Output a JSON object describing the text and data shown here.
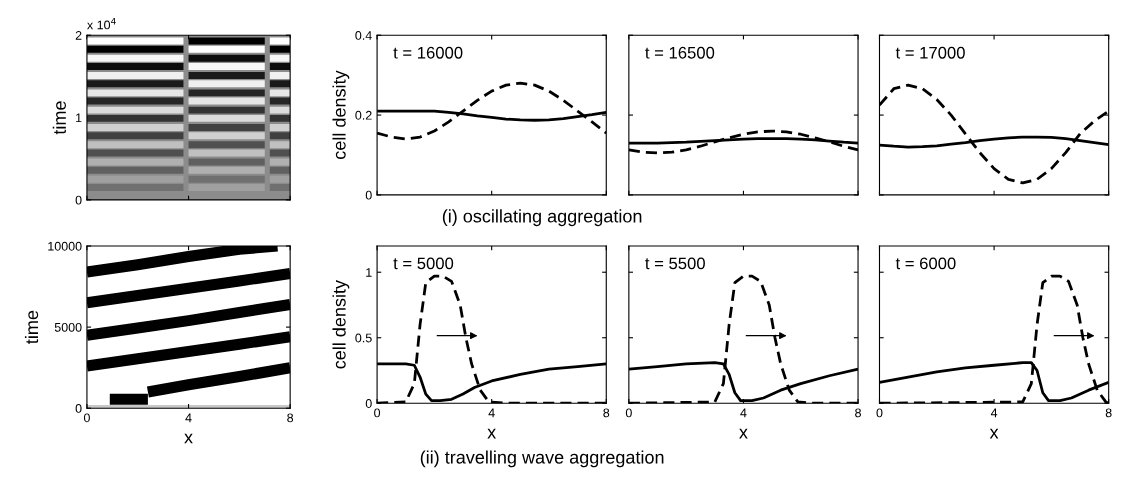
{
  "chart_data": [
    {
      "type": "line",
      "ylabel": "time",
      "annotations": [
        "x 10$^{4}$"
      ],
      "xlim": [
        0,
        8
      ],
      "ylim": [
        0,
        2
      ],
      "xticks": [
        {
          "value": 0,
          "label": null
        },
        {
          "value": 4,
          "label": null
        },
        {
          "value": 8,
          "label": null
        }
      ],
      "yticks": [
        0,
        1,
        2
      ],
      "tick_labels": "y",
      "bands": [
        {
          "axis": "y",
          "from": 0,
          "to": 2,
          "color": "#8c8c8c"
        }
      ],
      "series": [
        {
          "color": "#707070",
          "x": [
            0,
            3.8,
            5.5,
            7.2,
            8
          ],
          "values": [
            0.15,
            0.15,
            null,
            0.15,
            0.15
          ]
        },
        {
          "color": "#a0a0a0",
          "x": [
            4,
            7
          ],
          "values": [
            0.15,
            0.15
          ]
        },
        {
          "color": "#606060",
          "x": [
            0,
            3.8,
            5.5,
            7.2,
            8
          ],
          "values": [
            0.36,
            0.36,
            null,
            0.36,
            0.36
          ]
        },
        {
          "color": "#b0b0b0",
          "x": [
            4,
            7
          ],
          "values": [
            0.36,
            0.36
          ]
        },
        {
          "color": "#505050",
          "x": [
            0,
            3.8,
            5.5,
            7.2,
            8
          ],
          "values": [
            0.57,
            0.57,
            null,
            0.57,
            0.57
          ]
        },
        {
          "color": "#c0c0c0",
          "x": [
            4,
            7
          ],
          "values": [
            0.57,
            0.57
          ]
        },
        {
          "color": "#404040",
          "x": [
            0,
            3.8,
            5.5,
            7.2,
            8
          ],
          "values": [
            0.78,
            0.78,
            null,
            0.78,
            0.78
          ]
        },
        {
          "color": "#d0d0d0",
          "x": [
            4,
            7
          ],
          "values": [
            0.78,
            0.78
          ]
        },
        {
          "color": "#333333",
          "x": [
            0,
            3.8,
            5.5,
            7.2,
            8
          ],
          "values": [
            0.99,
            0.99,
            null,
            0.99,
            0.99
          ]
        },
        {
          "color": "#dcdcdc",
          "x": [
            4,
            7
          ],
          "values": [
            0.99,
            0.99
          ]
        },
        {
          "color": "#262626",
          "x": [
            0,
            3.8,
            5.5,
            7.2,
            8
          ],
          "values": [
            1.2,
            1.2,
            null,
            1.2,
            1.2
          ]
        },
        {
          "color": "#e6e6e6",
          "x": [
            4,
            7
          ],
          "values": [
            1.2,
            1.2
          ]
        },
        {
          "color": "#1a1a1a",
          "x": [
            0,
            3.8,
            5.5,
            7.2,
            8
          ],
          "values": [
            1.41,
            1.41,
            null,
            1.41,
            1.41
          ]
        },
        {
          "color": "#f0f0f0",
          "x": [
            4,
            7
          ],
          "values": [
            1.41,
            1.41
          ]
        },
        {
          "color": "#0d0d0d",
          "x": [
            0,
            3.8,
            5.5,
            7.2,
            8
          ],
          "values": [
            1.62,
            1.62,
            null,
            1.62,
            1.62
          ]
        },
        {
          "color": "#f8f8f8",
          "x": [
            4,
            7
          ],
          "values": [
            1.62,
            1.62
          ]
        },
        {
          "color": "#000000",
          "x": [
            0,
            3.8,
            5.5,
            7.2,
            8
          ],
          "values": [
            1.83,
            1.83,
            null,
            1.83,
            1.83
          ]
        },
        {
          "color": "#ffffff",
          "x": [
            4,
            7
          ],
          "values": [
            1.83,
            1.83
          ]
        },
        {
          "color": "#707070",
          "x": [
            4,
            7
          ],
          "values": [
            0.25,
            0.25
          ]
        },
        {
          "color": "#a0a0a0",
          "x": [
            0,
            3.8,
            5.5,
            7.2,
            8
          ],
          "values": [
            0.25,
            0.25,
            null,
            0.25,
            0.25
          ]
        },
        {
          "color": "#606060",
          "x": [
            4,
            7
          ],
          "values": [
            0.46,
            0.46
          ]
        },
        {
          "color": "#b0b0b0",
          "x": [
            0,
            3.8,
            5.5,
            7.2,
            8
          ],
          "values": [
            0.46,
            0.46,
            null,
            0.46,
            0.46
          ]
        },
        {
          "color": "#505050",
          "x": [
            4,
            7
          ],
          "values": [
            0.67,
            0.67
          ]
        },
        {
          "color": "#c0c0c0",
          "x": [
            0,
            3.8,
            5.5,
            7.2,
            8
          ],
          "values": [
            0.67,
            0.67,
            null,
            0.67,
            0.67
          ]
        },
        {
          "color": "#404040",
          "x": [
            4,
            7
          ],
          "values": [
            0.88,
            0.88
          ]
        },
        {
          "color": "#d0d0d0",
          "x": [
            0,
            3.8,
            5.5,
            7.2,
            8
          ],
          "values": [
            0.88,
            0.88,
            null,
            0.88,
            0.88
          ]
        },
        {
          "color": "#333333",
          "x": [
            4,
            7
          ],
          "values": [
            1.09,
            1.09
          ]
        },
        {
          "color": "#dcdcdc",
          "x": [
            0,
            3.8,
            5.5,
            7.2,
            8
          ],
          "values": [
            1.09,
            1.09,
            null,
            1.09,
            1.09
          ]
        },
        {
          "color": "#262626",
          "x": [
            4,
            7
          ],
          "values": [
            1.3,
            1.3
          ]
        },
        {
          "color": "#e6e6e6",
          "x": [
            0,
            3.8,
            5.5,
            7.2,
            8
          ],
          "values": [
            1.3,
            1.3,
            null,
            1.3,
            1.3
          ]
        },
        {
          "color": "#1a1a1a",
          "x": [
            4,
            7
          ],
          "values": [
            1.51,
            1.51
          ]
        },
        {
          "color": "#f0f0f0",
          "x": [
            0,
            3.8,
            5.5,
            7.2,
            8
          ],
          "values": [
            1.51,
            1.51,
            null,
            1.51,
            1.51
          ]
        },
        {
          "color": "#0d0d0d",
          "x": [
            4,
            7
          ],
          "values": [
            1.72,
            1.72
          ]
        },
        {
          "color": "#f8f8f8",
          "x": [
            0,
            3.8,
            5.5,
            7.2,
            8
          ],
          "values": [
            1.72,
            1.72,
            null,
            1.72,
            1.72
          ]
        },
        {
          "color": "#000000",
          "x": [
            4,
            7
          ],
          "values": [
            1.93,
            1.93
          ]
        },
        {
          "color": "#ffffff",
          "x": [
            0,
            3.8,
            5.5,
            7.2,
            8
          ],
          "values": [
            1.93,
            1.93,
            null,
            1.93,
            1.93
          ]
        }
      ]
    },
    {
      "type": "line",
      "ylabel": "cell density",
      "annotations": [
        "t = 16000",
        "(i) oscillating aggregation"
      ],
      "xlim": [
        0,
        8
      ],
      "ylim": [
        0,
        0.4
      ],
      "xticks": [
        {
          "value": 0,
          "label": null
        },
        {
          "value": 4,
          "label": null
        },
        {
          "value": 8,
          "label": null
        }
      ],
      "yticks": [
        0,
        0.2,
        0.4
      ],
      "tick_labels": "y",
      "series": [
        {
          "color": "#000000",
          "line_style": "solid",
          "x": [
            0,
            0.5,
            1,
            1.5,
            2,
            2.5,
            3,
            3.5,
            4,
            4.5,
            5,
            5.5,
            6,
            6.5,
            7,
            7.5,
            8
          ],
          "values": [
            0.21,
            0.21,
            0.21,
            0.21,
            0.21,
            0.207,
            0.203,
            0.198,
            0.194,
            0.19,
            0.188,
            0.187,
            0.188,
            0.191,
            0.196,
            0.201,
            0.207
          ]
        },
        {
          "color": "#000000",
          "line_style": "dashed",
          "x": [
            0,
            0.5,
            1,
            1.5,
            2,
            2.5,
            3,
            3.5,
            4,
            4.5,
            5,
            5.5,
            6,
            6.5,
            7,
            7.5,
            8
          ],
          "values": [
            0.155,
            0.145,
            0.14,
            0.145,
            0.16,
            0.183,
            0.21,
            0.237,
            0.26,
            0.275,
            0.28,
            0.275,
            0.26,
            0.237,
            0.21,
            0.183,
            0.155
          ]
        }
      ]
    },
    {
      "type": "line",
      "annotations": [
        "t = 16500"
      ],
      "xlim": [
        0,
        8
      ],
      "ylim": [
        0,
        0.4
      ],
      "xticks": [
        {
          "value": 0,
          "label": null
        },
        {
          "value": 4,
          "label": null
        },
        {
          "value": 8,
          "label": null
        }
      ],
      "yticks": [
        {
          "value": 0,
          "label": null
        },
        {
          "value": 0.2,
          "label": null
        },
        {
          "value": 0.4,
          "label": null
        }
      ],
      "tick_labels": false,
      "series": [
        {
          "color": "#000000",
          "line_style": "solid",
          "x": [
            0,
            0.5,
            1,
            1.5,
            2,
            2.5,
            3,
            3.5,
            4,
            4.5,
            5,
            5.5,
            6,
            6.5,
            7,
            7.5,
            8
          ],
          "values": [
            0.13,
            0.13,
            0.13,
            0.131,
            0.132,
            0.134,
            0.136,
            0.138,
            0.14,
            0.141,
            0.141,
            0.141,
            0.14,
            0.138,
            0.135,
            0.132,
            0.13
          ]
        },
        {
          "color": "#000000",
          "line_style": "dashed",
          "x": [
            0,
            0.5,
            1,
            1.5,
            2,
            2.5,
            3,
            3.5,
            4,
            4.5,
            5,
            5.5,
            6,
            6.5,
            7,
            7.5,
            8
          ],
          "values": [
            0.113,
            0.107,
            0.105,
            0.107,
            0.113,
            0.122,
            0.133,
            0.143,
            0.152,
            0.158,
            0.16,
            0.158,
            0.152,
            0.143,
            0.133,
            0.122,
            0.113
          ]
        }
      ]
    },
    {
      "type": "line",
      "annotations": [
        "t = 17000"
      ],
      "xlim": [
        0,
        8
      ],
      "ylim": [
        0,
        0.4
      ],
      "xticks": [
        {
          "value": 0,
          "label": null
        },
        {
          "value": 4,
          "label": null
        },
        {
          "value": 8,
          "label": null
        }
      ],
      "yticks": [
        {
          "value": 0,
          "label": null
        },
        {
          "value": 0.2,
          "label": null
        },
        {
          "value": 0.4,
          "label": null
        }
      ],
      "tick_labels": false,
      "series": [
        {
          "color": "#000000",
          "line_style": "solid",
          "x": [
            0,
            0.5,
            1,
            1.5,
            2,
            2.5,
            3,
            3.5,
            4,
            4.5,
            5,
            5.5,
            6,
            6.5,
            7,
            7.5,
            8
          ],
          "values": [
            0.125,
            0.122,
            0.12,
            0.121,
            0.123,
            0.127,
            0.131,
            0.136,
            0.14,
            0.143,
            0.145,
            0.145,
            0.144,
            0.141,
            0.136,
            0.131,
            0.126
          ]
        },
        {
          "color": "#000000",
          "line_style": "dashed",
          "x": [
            0,
            0.5,
            1,
            1.5,
            2,
            2.5,
            3,
            3.5,
            4,
            4.5,
            5,
            5.5,
            6,
            6.5,
            7,
            7.5,
            8
          ],
          "values": [
            0.225,
            0.266,
            0.275,
            0.266,
            0.239,
            0.2,
            0.153,
            0.106,
            0.066,
            0.039,
            0.03,
            0.039,
            0.066,
            0.106,
            0.153,
            0.185,
            0.21
          ]
        }
      ]
    },
    {
      "type": "line",
      "ylabel": "time",
      "xlabel": "x",
      "xlim": [
        0,
        8
      ],
      "ylim": [
        0,
        10000
      ],
      "xticks": [
        0,
        4,
        8
      ],
      "yticks": [
        0,
        5000,
        10000
      ],
      "bands": [
        {
          "axis": "y",
          "from": 0,
          "to": 200,
          "color": "#c8c8c8"
        }
      ],
      "series": [
        {
          "color": "#000000",
          "x": [
            0.9,
            2.4
          ],
          "values": [
            550,
            550
          ]
        },
        {
          "color": "#000000",
          "x": [
            2.4,
            4,
            6,
            8
          ],
          "values": [
            1000,
            1450,
            1950,
            2500
          ]
        },
        {
          "color": "#000000",
          "x": [
            0,
            2,
            4,
            6,
            8
          ],
          "values": [
            2600,
            3050,
            3500,
            3950,
            4400
          ]
        },
        {
          "color": "#000000",
          "x": [
            0,
            2,
            4,
            6,
            8
          ],
          "values": [
            4500,
            4950,
            5400,
            5900,
            6400
          ]
        },
        {
          "color": "#000000",
          "x": [
            0,
            2,
            4,
            6,
            8
          ],
          "values": [
            6500,
            6950,
            7400,
            7850,
            8300
          ]
        },
        {
          "color": "#000000",
          "x": [
            0,
            2,
            4,
            6,
            7.5
          ],
          "values": [
            8400,
            8850,
            9350,
            9800,
            10000
          ]
        }
      ]
    },
    {
      "type": "line",
      "ylabel": "cell density",
      "xlabel": "x",
      "annotations": [
        "t = 5000",
        "(ii) travelling wave aggregation"
      ],
      "xlim": [
        0,
        8
      ],
      "ylim": [
        0,
        1.2
      ],
      "xticks": [
        0,
        4,
        8
      ],
      "yticks": [
        0,
        0.5,
        1
      ],
      "series": [
        {
          "color": "#000000",
          "line_style": "solid",
          "x": [
            0,
            0.5,
            1,
            1.3,
            1.5,
            1.7,
            1.9,
            2.2,
            2.6,
            3,
            3.4,
            4,
            5,
            6,
            7,
            8
          ],
          "values": [
            0.3,
            0.3,
            0.3,
            0.29,
            0.2,
            0.07,
            0.02,
            0.02,
            0.03,
            0.07,
            0.12,
            0.17,
            0.22,
            0.26,
            0.28,
            0.3
          ]
        },
        {
          "color": "#000000",
          "line_style": "dashed",
          "x": [
            0,
            1,
            1.3,
            1.5,
            1.7,
            2,
            2.3,
            2.6,
            2.9,
            3.1,
            3.3,
            3.6,
            3.9,
            4.5,
            8
          ],
          "values": [
            0,
            0.01,
            0.15,
            0.6,
            0.92,
            0.97,
            0.97,
            0.93,
            0.75,
            0.5,
            0.3,
            0.1,
            0.01,
            0,
            0
          ]
        }
      ]
    },
    {
      "type": "line",
      "xlabel": "x",
      "annotations": [
        "t = 5500"
      ],
      "xlim": [
        0,
        8
      ],
      "ylim": [
        0,
        1.2
      ],
      "xticks": [
        0,
        4,
        8
      ],
      "yticks": [
        {
          "value": 0,
          "label": null
        },
        {
          "value": 0.5,
          "label": null
        },
        {
          "value": 1,
          "label": null
        }
      ],
      "tick_labels": "x",
      "series": [
        {
          "color": "#000000",
          "line_style": "solid",
          "x": [
            0,
            1,
            2,
            3,
            3.3,
            3.5,
            3.7,
            3.9,
            4.3,
            4.7,
            5.3,
            6,
            7,
            8
          ],
          "values": [
            0.26,
            0.28,
            0.3,
            0.31,
            0.3,
            0.22,
            0.08,
            0.02,
            0.02,
            0.04,
            0.1,
            0.15,
            0.21,
            0.26
          ]
        },
        {
          "color": "#000000",
          "line_style": "dashed",
          "x": [
            0,
            3,
            3.3,
            3.5,
            3.7,
            4,
            4.3,
            4.6,
            4.9,
            5.1,
            5.3,
            5.6,
            5.9,
            6.5,
            8
          ],
          "values": [
            0,
            0.01,
            0.15,
            0.6,
            0.92,
            0.97,
            0.97,
            0.93,
            0.75,
            0.5,
            0.3,
            0.1,
            0.01,
            0,
            0
          ]
        }
      ]
    },
    {
      "type": "line",
      "xlabel": "x",
      "annotations": [
        "t = 6000"
      ],
      "xlim": [
        0,
        8
      ],
      "ylim": [
        0,
        1.2
      ],
      "xticks": [
        0,
        4,
        8
      ],
      "yticks": [
        {
          "value": 0,
          "label": null
        },
        {
          "value": 0.5,
          "label": null
        },
        {
          "value": 1,
          "label": null
        }
      ],
      "tick_labels": "x",
      "series": [
        {
          "color": "#000000",
          "line_style": "solid",
          "x": [
            0,
            1,
            2,
            3,
            4,
            5,
            5.3,
            5.5,
            5.7,
            5.9,
            6.3,
            6.7,
            7.3,
            8
          ],
          "values": [
            0.16,
            0.2,
            0.24,
            0.27,
            0.29,
            0.31,
            0.31,
            0.25,
            0.08,
            0.02,
            0.02,
            0.04,
            0.1,
            0.16
          ]
        },
        {
          "color": "#000000",
          "line_style": "dashed",
          "x": [
            0,
            5,
            5.3,
            5.5,
            5.7,
            6,
            6.3,
            6.6,
            6.9,
            7.1,
            7.3,
            7.6,
            7.9,
            8
          ],
          "values": [
            0,
            0.01,
            0.15,
            0.6,
            0.92,
            0.97,
            0.97,
            0.93,
            0.75,
            0.5,
            0.3,
            0.1,
            0.01,
            0
          ]
        }
      ]
    }
  ]
}
